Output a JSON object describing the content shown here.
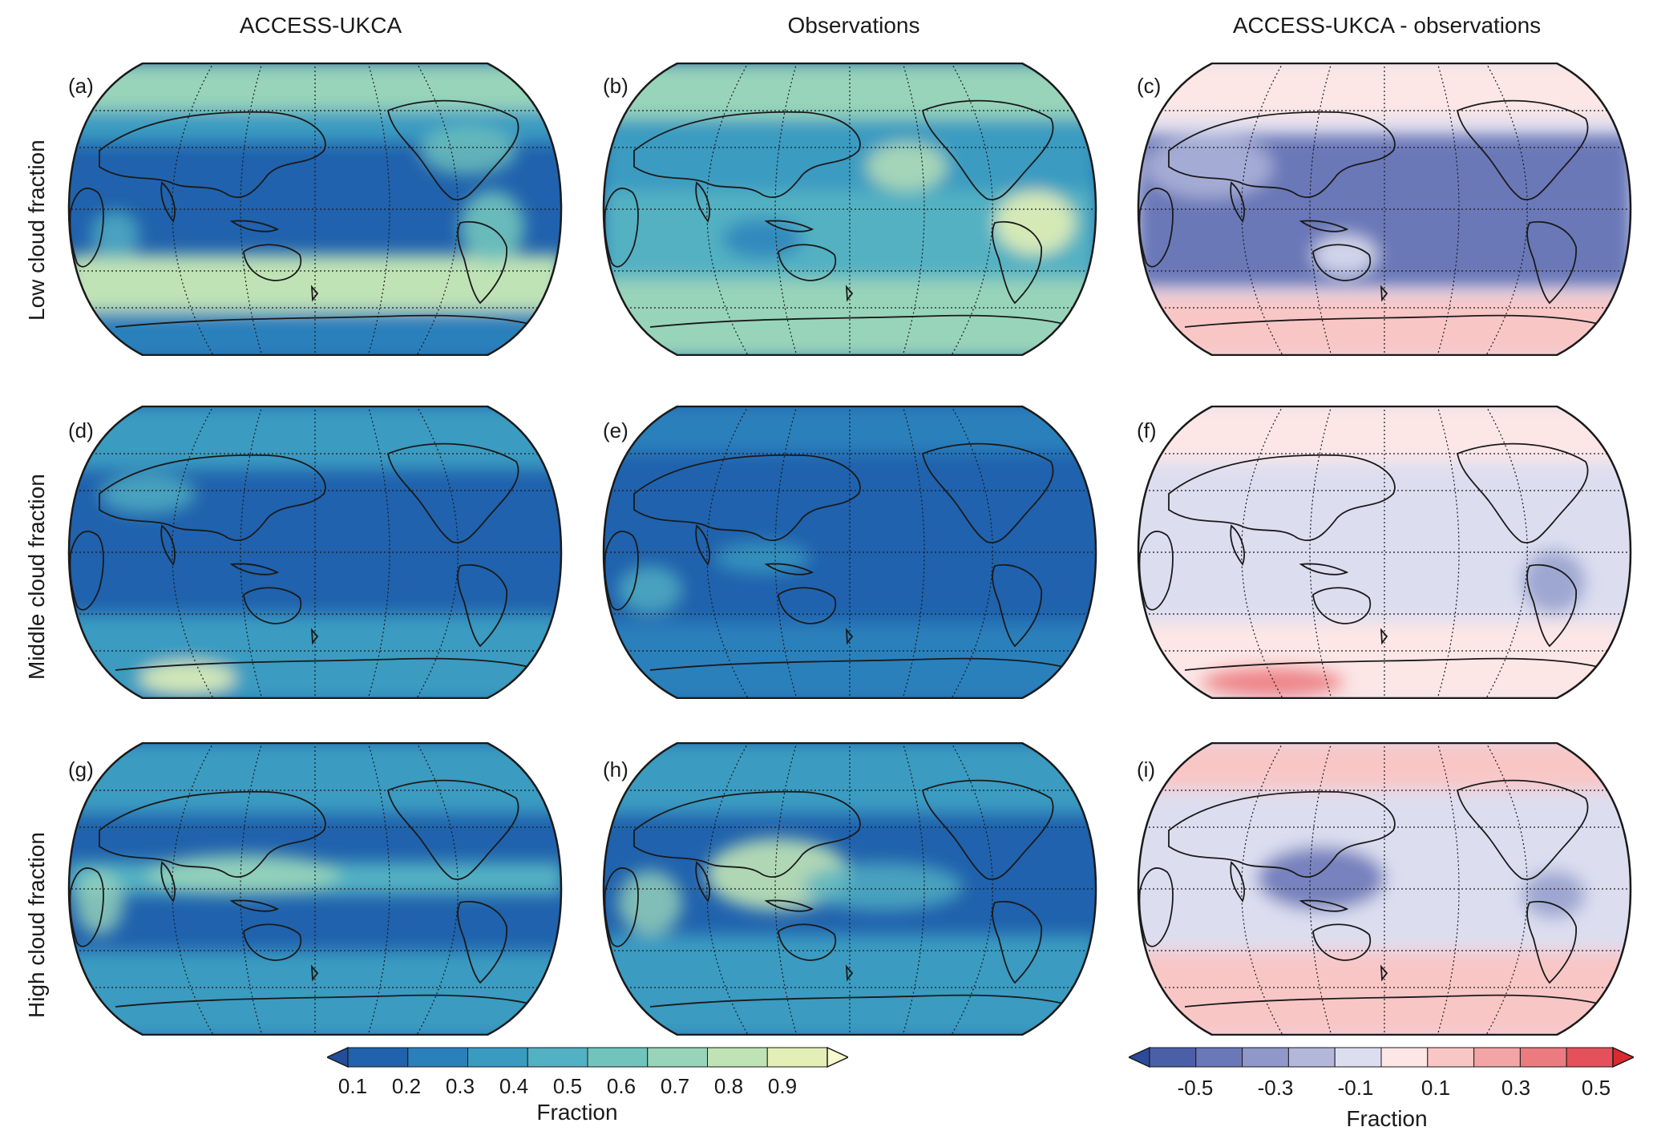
{
  "columns": [
    "ACCESS-UKCA",
    "Observations",
    "ACCESS-UKCA - observations"
  ],
  "rows": [
    "Low cloud fraction",
    "Middle cloud fraction",
    "High cloud fraction"
  ],
  "panels": [
    "(a)",
    "(b)",
    "(c)",
    "(d)",
    "(e)",
    "(f)",
    "(g)",
    "(h)",
    "(i)"
  ],
  "colorbar_left": {
    "ticks": [
      "0.1",
      "0.2",
      "0.3",
      "0.4",
      "0.5",
      "0.6",
      "0.7",
      "0.8",
      "0.9"
    ],
    "title": "Fraction",
    "colors": [
      "#234e9b",
      "#2062ad",
      "#2a80bb",
      "#3a9bc1",
      "#52b1c2",
      "#71c4bc",
      "#98d4b9",
      "#c0e3b5",
      "#e3efb6",
      "#f8f9cf"
    ],
    "extend": "both"
  },
  "colorbar_right": {
    "ticks": [
      "-0.5",
      "-0.3",
      "-0.1",
      "0.1",
      "0.3",
      "0.5"
    ],
    "title": "Fraction",
    "colors": [
      "#2b4a9a",
      "#4b5fa8",
      "#6b78b8",
      "#8f98c9",
      "#b3b8db",
      "#dcdef0",
      "#fde6e6",
      "#f9c6c6",
      "#f3a4a6",
      "#ec7b80",
      "#e4515a",
      "#d92931"
    ],
    "extend": "both"
  },
  "colors": {
    "land_outline": "#1a1a1a",
    "grid": "#1a1a1a"
  }
}
